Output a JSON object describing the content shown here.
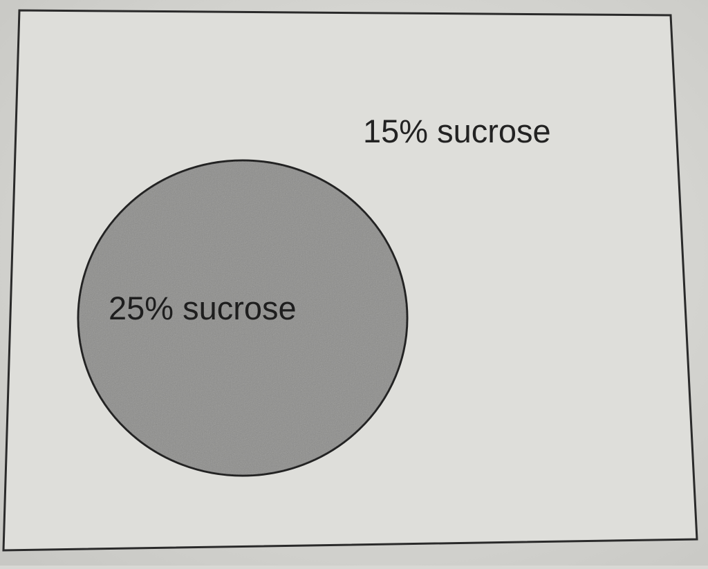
{
  "diagram": {
    "outer_label": "15% sucrose",
    "inner_label": "25% sucrose",
    "colors": {
      "paper": "#dcdcd8",
      "border": "#2a2a2a",
      "cell_fill": "#8c8c8a",
      "text": "#222222"
    }
  }
}
